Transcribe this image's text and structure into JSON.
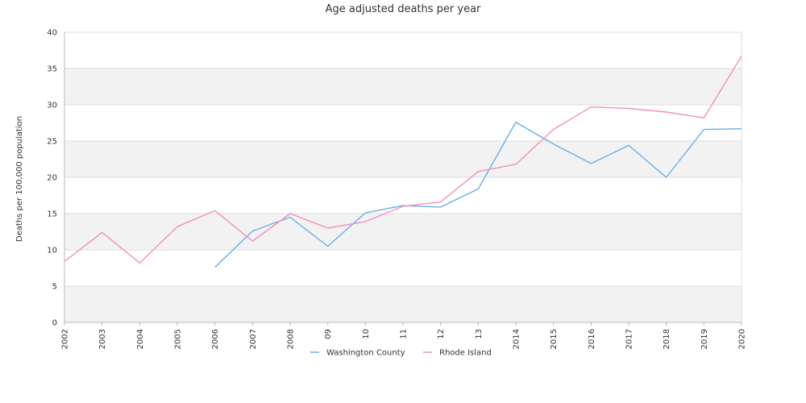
{
  "chart_data": {
    "type": "line",
    "title": "Age adjusted deaths per year",
    "xlabel": "",
    "ylabel": "Deaths per 100,000 population",
    "categories": [
      "2002",
      "2003",
      "2004",
      "2005",
      "2006",
      "2007",
      "2008",
      "09",
      "10",
      "11",
      "12",
      "13",
      "2014",
      "2015",
      "2016",
      "2017",
      "2018",
      "2019",
      "2020"
    ],
    "ylim": [
      0,
      40
    ],
    "yticks": [
      0,
      5,
      10,
      15,
      20,
      25,
      30,
      35,
      40
    ],
    "grid": true,
    "legend_position": "bottom",
    "series": [
      {
        "name": "Washington County",
        "color": "#6aaee6",
        "values": [
          null,
          null,
          null,
          null,
          7.6,
          12.6,
          14.5,
          10.5,
          15.1,
          16.1,
          15.9,
          18.4,
          27.6,
          24.6,
          21.9,
          24.4,
          20.0,
          26.6,
          26.7
        ]
      },
      {
        "name": "Rhode Island",
        "color": "#f291bf",
        "values": [
          8.4,
          12.4,
          8.2,
          13.2,
          15.4,
          11.2,
          15.0,
          13.0,
          13.9,
          16.0,
          16.6,
          20.8,
          21.8,
          26.6,
          29.7,
          29.5,
          29.0,
          28.2,
          36.7
        ]
      }
    ]
  },
  "colors": {
    "band_shaded": "#f2f2f2",
    "band_plain": "#ffffff",
    "gridline": "#dddddd",
    "axis": "#bbbbbb",
    "text": "#333333"
  }
}
